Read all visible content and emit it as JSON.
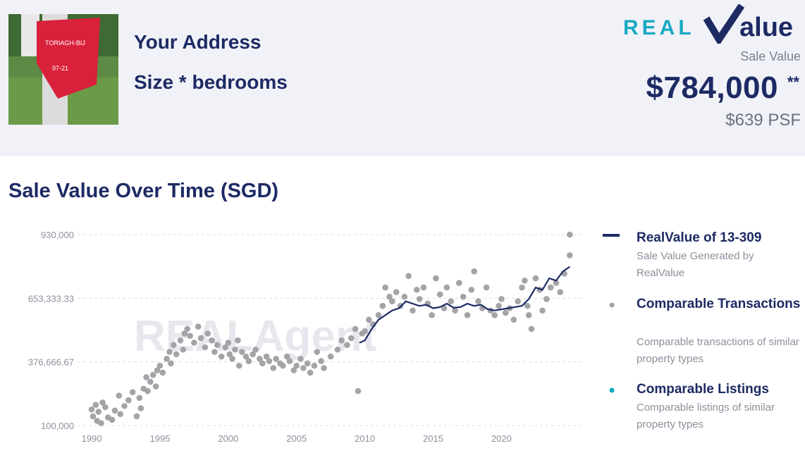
{
  "header": {
    "address": "Your Address",
    "size": "Size * bedrooms",
    "logo_text_left": "REAL",
    "logo_text_right": "alue",
    "sale_value_label": "Sale Value",
    "price": "$784,000",
    "price_marks": "**",
    "psf": "$639 PSF",
    "photo_sign_text_1": "TORIAGH-BIJ",
    "photo_sign_text_2": "97-21"
  },
  "chart_title": "Sale Value Over Time (SGD)",
  "watermark": "REALAgent",
  "colors": {
    "navy": "#1d2a64",
    "teal": "#12a8c4",
    "dots": "#a4a4a8",
    "header_bg": "#f1f2f7"
  },
  "legend": [
    {
      "title": "RealValue of 13-309",
      "desc": "Sale Value Generated by RealValue",
      "symbol": "line"
    },
    {
      "title": "Comparable Transactions",
      "desc": "Comparable transactions of similar property types",
      "symbol": "gray-dot"
    },
    {
      "title": "Comparable Listings",
      "desc": "Comparable listings of similar property types",
      "symbol": "teal-dot"
    }
  ],
  "chart_data": {
    "type": "scatter",
    "title": "Sale Value Over Time (SGD)",
    "xlim": [
      1990,
      2025.5
    ],
    "ylim": [
      100000,
      930000
    ],
    "x_ticks": [
      1990,
      1995,
      2000,
      2005,
      2010,
      2015,
      2020
    ],
    "y_ticks": [
      100000,
      376666.67,
      653333.33,
      930000
    ],
    "y_tick_labels": [
      "100,000",
      "376,666.67",
      "653,333.33",
      "930,000"
    ],
    "grid": "horizontal dashed",
    "legend_position": "right",
    "series": [
      {
        "name": "RealValue of 13-309",
        "kind": "line",
        "points": [
          [
            2009.6,
            460000
          ],
          [
            2010.0,
            470000
          ],
          [
            2010.5,
            520000
          ],
          [
            2011.0,
            560000
          ],
          [
            2011.5,
            580000
          ],
          [
            2012.0,
            600000
          ],
          [
            2012.5,
            610000
          ],
          [
            2013.0,
            640000
          ],
          [
            2013.5,
            630000
          ],
          [
            2014.0,
            620000
          ],
          [
            2014.5,
            625000
          ],
          [
            2015.0,
            610000
          ],
          [
            2015.5,
            615000
          ],
          [
            2016.0,
            630000
          ],
          [
            2016.5,
            612000
          ],
          [
            2017.0,
            615000
          ],
          [
            2017.5,
            630000
          ],
          [
            2018.0,
            620000
          ],
          [
            2018.5,
            625000
          ],
          [
            2019.0,
            605000
          ],
          [
            2019.5,
            600000
          ],
          [
            2020.0,
            605000
          ],
          [
            2020.5,
            610000
          ],
          [
            2021.0,
            615000
          ],
          [
            2021.5,
            620000
          ],
          [
            2022.0,
            650000
          ],
          [
            2022.5,
            700000
          ],
          [
            2023.0,
            690000
          ],
          [
            2023.5,
            740000
          ],
          [
            2024.0,
            730000
          ],
          [
            2024.5,
            770000
          ],
          [
            2025.0,
            790000
          ]
        ]
      },
      {
        "name": "Comparable Transactions",
        "kind": "scatter",
        "points": [
          [
            1990.0,
            170000
          ],
          [
            1990.1,
            140000
          ],
          [
            1990.3,
            190000
          ],
          [
            1990.4,
            120000
          ],
          [
            1990.5,
            160000
          ],
          [
            1990.7,
            110000
          ],
          [
            1990.8,
            200000
          ],
          [
            1991.0,
            180000
          ],
          [
            1991.2,
            135000
          ],
          [
            1991.5,
            125000
          ],
          [
            1991.7,
            165000
          ],
          [
            1992.0,
            230000
          ],
          [
            1992.1,
            150000
          ],
          [
            1992.4,
            185000
          ],
          [
            1992.7,
            210000
          ],
          [
            1993.0,
            245000
          ],
          [
            1993.3,
            140000
          ],
          [
            1993.5,
            220000
          ],
          [
            1993.6,
            175000
          ],
          [
            1993.8,
            260000
          ],
          [
            1994.0,
            310000
          ],
          [
            1994.1,
            250000
          ],
          [
            1994.3,
            290000
          ],
          [
            1994.5,
            320000
          ],
          [
            1994.7,
            270000
          ],
          [
            1994.8,
            340000
          ],
          [
            1995.0,
            360000
          ],
          [
            1995.2,
            330000
          ],
          [
            1995.5,
            390000
          ],
          [
            1995.7,
            420000
          ],
          [
            1995.8,
            370000
          ],
          [
            1996.0,
            450000
          ],
          [
            1996.2,
            410000
          ],
          [
            1996.5,
            470000
          ],
          [
            1996.7,
            430000
          ],
          [
            1996.8,
            500000
          ],
          [
            1997.0,
            520000
          ],
          [
            1997.2,
            490000
          ],
          [
            1997.5,
            460000
          ],
          [
            1997.8,
            530000
          ],
          [
            1998.0,
            480000
          ],
          [
            1998.3,
            440000
          ],
          [
            1998.5,
            500000
          ],
          [
            1998.8,
            470000
          ],
          [
            1999.0,
            420000
          ],
          [
            1999.2,
            450000
          ],
          [
            1999.5,
            400000
          ],
          [
            1999.8,
            440000
          ],
          [
            2000.0,
            460000
          ],
          [
            2000.1,
            410000
          ],
          [
            2000.3,
            390000
          ],
          [
            2000.5,
            430000
          ],
          [
            2000.7,
            470000
          ],
          [
            2000.8,
            360000
          ],
          [
            2001.0,
            420000
          ],
          [
            2001.3,
            400000
          ],
          [
            2001.5,
            380000
          ],
          [
            2001.8,
            410000
          ],
          [
            2002.0,
            430000
          ],
          [
            2002.3,
            390000
          ],
          [
            2002.5,
            370000
          ],
          [
            2002.8,
            400000
          ],
          [
            2003.0,
            380000
          ],
          [
            2003.3,
            350000
          ],
          [
            2003.5,
            390000
          ],
          [
            2003.8,
            370000
          ],
          [
            2004.0,
            360000
          ],
          [
            2004.3,
            400000
          ],
          [
            2004.5,
            380000
          ],
          [
            2004.8,
            340000
          ],
          [
            2005.0,
            360000
          ],
          [
            2005.3,
            390000
          ],
          [
            2005.5,
            350000
          ],
          [
            2005.8,
            370000
          ],
          [
            2006.0,
            330000
          ],
          [
            2006.3,
            360000
          ],
          [
            2006.5,
            420000
          ],
          [
            2006.8,
            380000
          ],
          [
            2007.0,
            350000
          ],
          [
            2007.5,
            400000
          ],
          [
            2008.0,
            430000
          ],
          [
            2008.3,
            470000
          ],
          [
            2008.7,
            450000
          ],
          [
            2009.0,
            480000
          ],
          [
            2009.3,
            520000
          ],
          [
            2009.5,
            250000
          ],
          [
            2009.8,
            500000
          ],
          [
            2010.0,
            510000
          ],
          [
            2010.3,
            560000
          ],
          [
            2010.6,
            540000
          ],
          [
            2011.0,
            580000
          ],
          [
            2011.3,
            620000
          ],
          [
            2011.5,
            700000
          ],
          [
            2011.8,
            660000
          ],
          [
            2012.0,
            640000
          ],
          [
            2012.3,
            680000
          ],
          [
            2012.6,
            620000
          ],
          [
            2012.9,
            660000
          ],
          [
            2013.2,
            750000
          ],
          [
            2013.5,
            600000
          ],
          [
            2013.8,
            690000
          ],
          [
            2014.0,
            650000
          ],
          [
            2014.3,
            700000
          ],
          [
            2014.6,
            630000
          ],
          [
            2014.9,
            580000
          ],
          [
            2015.2,
            740000
          ],
          [
            2015.5,
            670000
          ],
          [
            2015.8,
            610000
          ],
          [
            2016.0,
            700000
          ],
          [
            2016.3,
            640000
          ],
          [
            2016.6,
            600000
          ],
          [
            2016.9,
            720000
          ],
          [
            2017.2,
            660000
          ],
          [
            2017.5,
            580000
          ],
          [
            2017.8,
            690000
          ],
          [
            2018.0,
            770000
          ],
          [
            2018.3,
            640000
          ],
          [
            2018.6,
            610000
          ],
          [
            2018.9,
            700000
          ],
          [
            2019.2,
            600000
          ],
          [
            2019.5,
            580000
          ],
          [
            2019.8,
            620000
          ],
          [
            2020.0,
            650000
          ],
          [
            2020.3,
            590000
          ],
          [
            2020.6,
            610000
          ],
          [
            2020.9,
            560000
          ],
          [
            2021.2,
            640000
          ],
          [
            2021.5,
            700000
          ],
          [
            2021.7,
            730000
          ],
          [
            2021.9,
            620000
          ],
          [
            2022.0,
            580000
          ],
          [
            2022.2,
            520000
          ],
          [
            2022.5,
            740000
          ],
          [
            2022.8,
            690000
          ],
          [
            2023.0,
            600000
          ],
          [
            2023.3,
            650000
          ],
          [
            2023.6,
            700000
          ],
          [
            2024.0,
            720000
          ],
          [
            2024.3,
            680000
          ],
          [
            2024.6,
            760000
          ],
          [
            2025.0,
            840000
          ],
          [
            2025.0,
            930000
          ]
        ]
      },
      {
        "name": "Comparable Listings",
        "kind": "scatter",
        "points": []
      }
    ]
  }
}
